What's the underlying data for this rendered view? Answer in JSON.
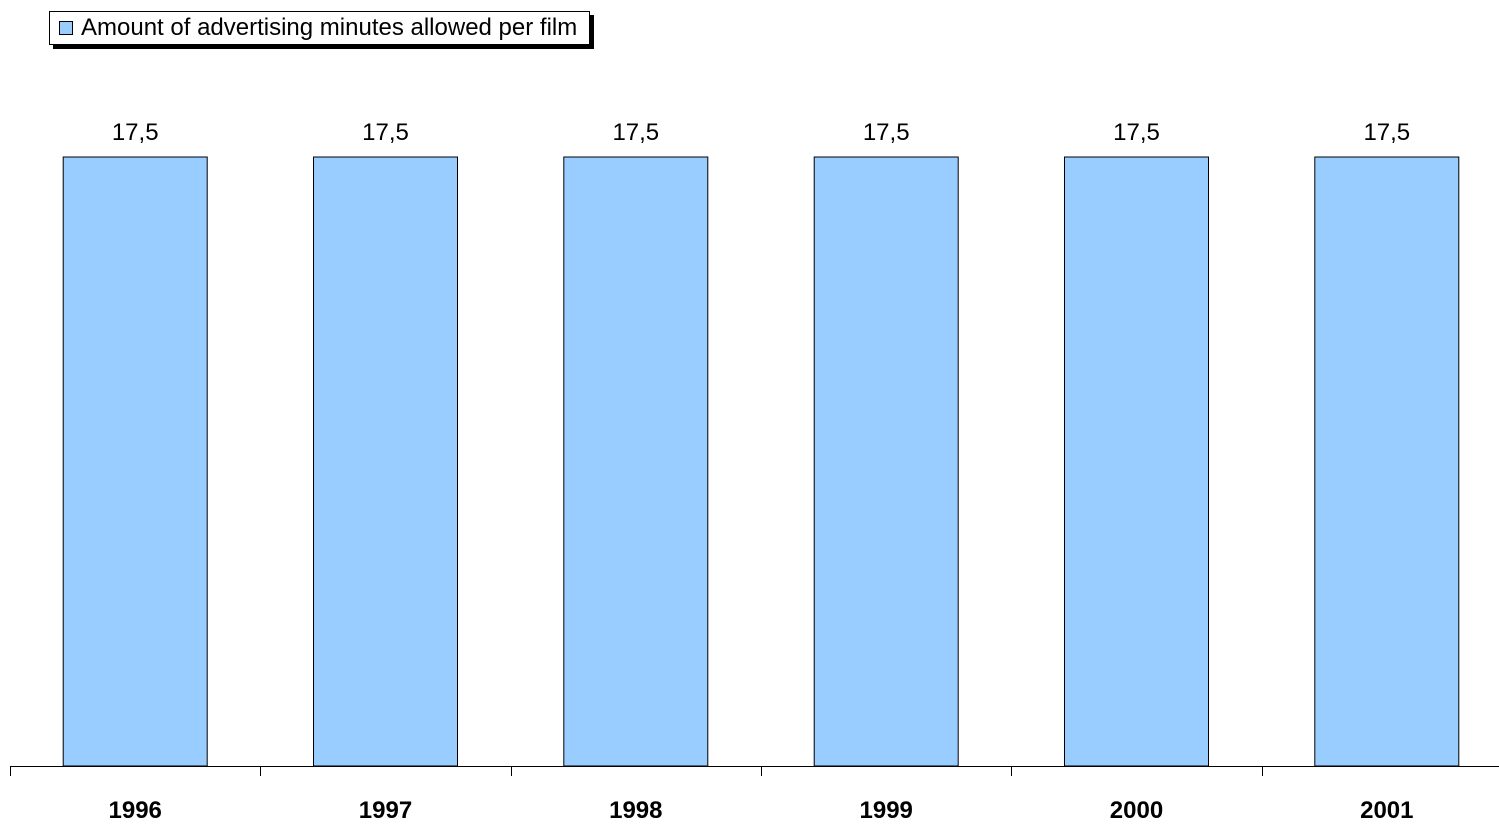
{
  "chart_data": {
    "type": "bar",
    "categories": [
      "1996",
      "1997",
      "1998",
      "1999",
      "2000",
      "2001"
    ],
    "series": [
      {
        "name": "Amount of advertising minutes allowed per film",
        "values": [
          17.5,
          17.5,
          17.5,
          17.5,
          17.5,
          17.5
        ],
        "labels": [
          "17,5",
          "17,5",
          "17,5",
          "17,5",
          "17,5",
          "17,5"
        ],
        "color": "#99ccff"
      }
    ],
    "ylim": [
      0,
      17.5
    ],
    "grid": false,
    "legend_position": "top-left",
    "bar_outline_color": "#000000"
  }
}
